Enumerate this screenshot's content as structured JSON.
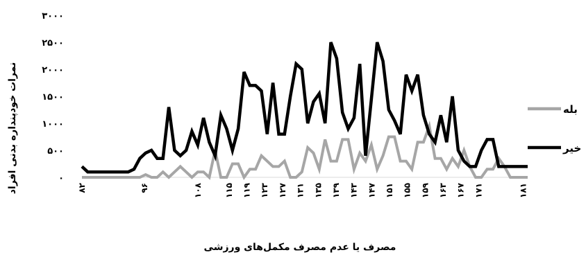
{
  "chart_data": {
    "type": "line",
    "ylabel": "نمرات خودپنداره بدنی افراد",
    "xlabel": "مصرف یا عدم مصرف مکمل‌های ورزشی",
    "ylim": [
      0,
      3000
    ],
    "y_ticks": [
      {
        "value": 0,
        "label": "۰"
      },
      {
        "value": 500,
        "label": "۵۰۰"
      },
      {
        "value": 1000,
        "label": "۱۰۰۰"
      },
      {
        "value": 1500,
        "label": "۱۵۰۰"
      },
      {
        "value": 2000,
        "label": "۲۰۰۰"
      },
      {
        "value": 2500,
        "label": "۲۵۰۰"
      },
      {
        "value": 3000,
        "label": "۳۰۰۰"
      }
    ],
    "x_start": 82,
    "x_end": 182,
    "x_tick_labels": [
      {
        "x": 82,
        "label": "۸۲"
      },
      {
        "x": 96,
        "label": "۹۶"
      },
      {
        "x": 108,
        "label": "۱۰۸"
      },
      {
        "x": 115,
        "label": "۱۱۵"
      },
      {
        "x": 119,
        "label": "۱۱۹"
      },
      {
        "x": 123,
        "label": "۱۲۳"
      },
      {
        "x": 127,
        "label": "۱۲۷"
      },
      {
        "x": 131,
        "label": "۱۳۱"
      },
      {
        "x": 135,
        "label": "۱۳۵"
      },
      {
        "x": 139,
        "label": "۱۳۹"
      },
      {
        "x": 143,
        "label": "۱۴۳"
      },
      {
        "x": 147,
        "label": "۱۴۷"
      },
      {
        "x": 151,
        "label": "۱۵۱"
      },
      {
        "x": 155,
        "label": "۱۵۵"
      },
      {
        "x": 159,
        "label": "۱۵۹"
      },
      {
        "x": 163,
        "label": "۱۶۳"
      },
      {
        "x": 167,
        "label": "۱۶۷"
      },
      {
        "x": 171,
        "label": "۱۷۱"
      },
      {
        "x": 181,
        "label": "۱۸۱"
      }
    ],
    "legend_position": "right",
    "series": [
      {
        "name": "بله",
        "color": "#a6a6a6",
        "values": [
          0,
          0,
          0,
          0,
          0,
          0,
          0,
          0,
          0,
          0,
          0,
          50,
          0,
          0,
          100,
          0,
          100,
          200,
          100,
          0,
          100,
          100,
          0,
          500,
          0,
          0,
          250,
          250,
          0,
          150,
          150,
          400,
          300,
          200,
          200,
          300,
          0,
          0,
          100,
          550,
          450,
          150,
          700,
          300,
          300,
          700,
          700,
          150,
          450,
          300,
          600,
          150,
          400,
          750,
          750,
          300,
          300,
          150,
          650,
          650,
          950,
          350,
          350,
          150,
          350,
          200,
          500,
          200,
          0,
          0,
          150,
          150,
          350,
          200,
          0,
          0,
          0,
          0
        ]
      },
      {
        "name": "خیر",
        "color": "#000000",
        "values": [
          200,
          100,
          100,
          100,
          100,
          100,
          100,
          100,
          100,
          150,
          350,
          450,
          500,
          350,
          350,
          1300,
          500,
          400,
          500,
          850,
          600,
          1100,
          650,
          400,
          1150,
          900,
          500,
          900,
          1950,
          1700,
          1700,
          1600,
          800,
          1750,
          800,
          800,
          1500,
          2100,
          2000,
          1000,
          1400,
          1550,
          1000,
          2500,
          2200,
          1200,
          900,
          1100,
          2100,
          400,
          1450,
          2500,
          2150,
          1250,
          1050,
          800,
          1900,
          1600,
          1900,
          1150,
          800,
          650,
          1150,
          650,
          1500,
          500,
          300,
          200,
          200,
          500,
          700,
          700,
          200,
          200,
          200,
          200,
          200,
          200
        ]
      }
    ]
  }
}
